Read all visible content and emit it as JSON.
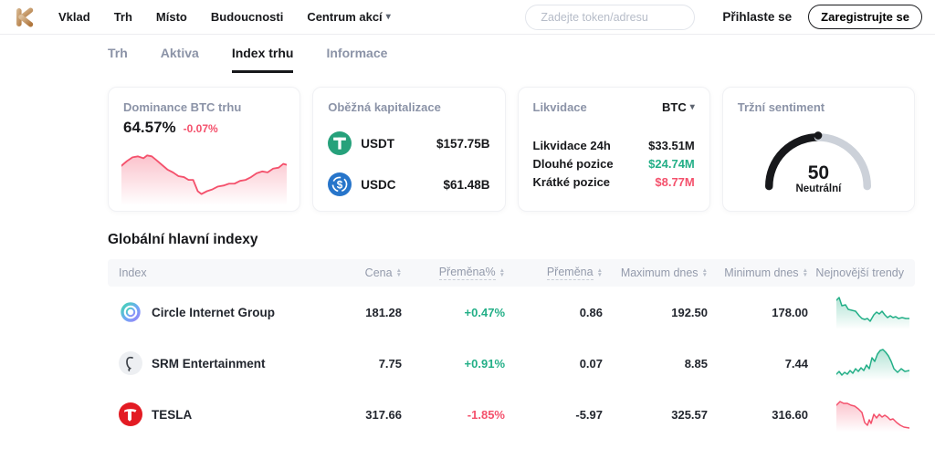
{
  "nav": {
    "items": [
      "Vklad",
      "Trh",
      "Místo",
      "Budoucnosti"
    ],
    "dropdown_label": "Centrum akcí",
    "search_placeholder": "Zadejte token/adresu",
    "login_label": "Přihlaste se",
    "register_label": "Zaregistrujte se"
  },
  "tabs": {
    "trh": "Trh",
    "aktiva": "Aktiva",
    "index_trhu": "Index trhu",
    "informace": "Informace"
  },
  "cards": {
    "dominance": {
      "title": "Dominance BTC trhu",
      "value": "64.57%",
      "change": "-0.07%",
      "spark": [
        [
          0,
          20
        ],
        [
          6,
          15
        ],
        [
          12,
          11
        ],
        [
          18,
          10
        ],
        [
          24,
          12
        ],
        [
          28,
          9
        ],
        [
          33,
          10
        ],
        [
          38,
          14
        ],
        [
          44,
          19
        ],
        [
          50,
          24
        ],
        [
          56,
          27
        ],
        [
          62,
          31
        ],
        [
          68,
          32
        ],
        [
          73,
          35
        ],
        [
          78,
          35
        ],
        [
          83,
          47
        ],
        [
          87,
          50
        ],
        [
          93,
          47
        ],
        [
          99,
          45
        ],
        [
          105,
          42
        ],
        [
          111,
          41
        ],
        [
          117,
          39
        ],
        [
          123,
          39
        ],
        [
          129,
          36
        ],
        [
          135,
          35
        ],
        [
          141,
          32
        ],
        [
          147,
          28
        ],
        [
          153,
          26
        ],
        [
          159,
          27
        ],
        [
          165,
          23
        ],
        [
          171,
          22
        ],
        [
          176,
          18
        ],
        [
          180,
          19
        ]
      ]
    },
    "market_cap": {
      "title": "Oběžná kapitalizace",
      "rows": [
        {
          "symbol": "USDT",
          "value": "$157.75B"
        },
        {
          "symbol": "USDC",
          "value": "$61.48B"
        }
      ]
    },
    "liquidation": {
      "title": "Likvidace",
      "selector": "BTC",
      "rows": [
        {
          "label": "Likvidace 24h",
          "value": "$33.51M"
        },
        {
          "label": "Dlouhé pozice",
          "value": "$24.74M"
        },
        {
          "label": "Krátké pozice",
          "value": "$8.77M"
        }
      ]
    },
    "sentiment": {
      "title": "Tržní sentiment",
      "value": "50",
      "label": "Neutrální",
      "percent": 50
    }
  },
  "section": {
    "title": "Globální hlavní indexy"
  },
  "table": {
    "headers": {
      "index": "Index",
      "price": "Cena",
      "change_pct": "Přeměna%",
      "change": "Přeměna",
      "high": "Maximum dnes",
      "low": "Minimum dnes",
      "trend": "Nejnovější trendy"
    },
    "rows": [
      {
        "name": "Circle Internet Group",
        "price": "181.28",
        "change_pct": "+0.47%",
        "change": "0.86",
        "high": "192.50",
        "low": "178.00",
        "direction": "up",
        "spark": [
          [
            0,
            6
          ],
          [
            3,
            3
          ],
          [
            6,
            12
          ],
          [
            10,
            11
          ],
          [
            13,
            16
          ],
          [
            17,
            17
          ],
          [
            21,
            18
          ],
          [
            25,
            23
          ],
          [
            28,
            26
          ],
          [
            31,
            27
          ],
          [
            34,
            26
          ],
          [
            37,
            29
          ],
          [
            41,
            22
          ],
          [
            44,
            19
          ],
          [
            47,
            21
          ],
          [
            50,
            18
          ],
          [
            53,
            22
          ],
          [
            56,
            25
          ],
          [
            59,
            23
          ],
          [
            62,
            25
          ],
          [
            65,
            24
          ],
          [
            68,
            26
          ],
          [
            72,
            25
          ],
          [
            76,
            26
          ],
          [
            80,
            26
          ]
        ]
      },
      {
        "name": "SRM Entertainment",
        "price": "7.75",
        "change_pct": "+0.91%",
        "change": "0.07",
        "high": "8.85",
        "low": "7.44",
        "direction": "up",
        "spark": [
          [
            0,
            31
          ],
          [
            3,
            28
          ],
          [
            6,
            32
          ],
          [
            9,
            29
          ],
          [
            12,
            31
          ],
          [
            15,
            27
          ],
          [
            18,
            30
          ],
          [
            21,
            25
          ],
          [
            24,
            28
          ],
          [
            27,
            24
          ],
          [
            30,
            27
          ],
          [
            33,
            21
          ],
          [
            36,
            25
          ],
          [
            39,
            13
          ],
          [
            42,
            17
          ],
          [
            45,
            9
          ],
          [
            48,
            5
          ],
          [
            51,
            4
          ],
          [
            54,
            7
          ],
          [
            57,
            11
          ],
          [
            60,
            17
          ],
          [
            63,
            25
          ],
          [
            67,
            29
          ],
          [
            71,
            25
          ],
          [
            75,
            28
          ],
          [
            80,
            27
          ]
        ]
      },
      {
        "name": "TESLA",
        "price": "317.66",
        "change_pct": "-1.85%",
        "change": "-5.97",
        "high": "325.57",
        "low": "316.60",
        "direction": "down",
        "spark": [
          [
            0,
            9
          ],
          [
            4,
            5
          ],
          [
            8,
            7
          ],
          [
            12,
            7
          ],
          [
            16,
            9
          ],
          [
            20,
            10
          ],
          [
            24,
            13
          ],
          [
            28,
            17
          ],
          [
            31,
            28
          ],
          [
            34,
            31
          ],
          [
            36,
            25
          ],
          [
            38,
            29
          ],
          [
            41,
            19
          ],
          [
            44,
            23
          ],
          [
            47,
            19
          ],
          [
            50,
            22
          ],
          [
            53,
            20
          ],
          [
            56,
            22
          ],
          [
            59,
            25
          ],
          [
            62,
            24
          ],
          [
            66,
            28
          ],
          [
            70,
            31
          ],
          [
            74,
            33
          ],
          [
            80,
            34
          ]
        ]
      }
    ]
  },
  "colors": {
    "up": "#23af87",
    "down": "#f4516c",
    "brand_gold": "#c1904f",
    "usdt_green": "#26a17b",
    "usdc_blue": "#2775ca",
    "tesla_red": "#e31b23"
  }
}
